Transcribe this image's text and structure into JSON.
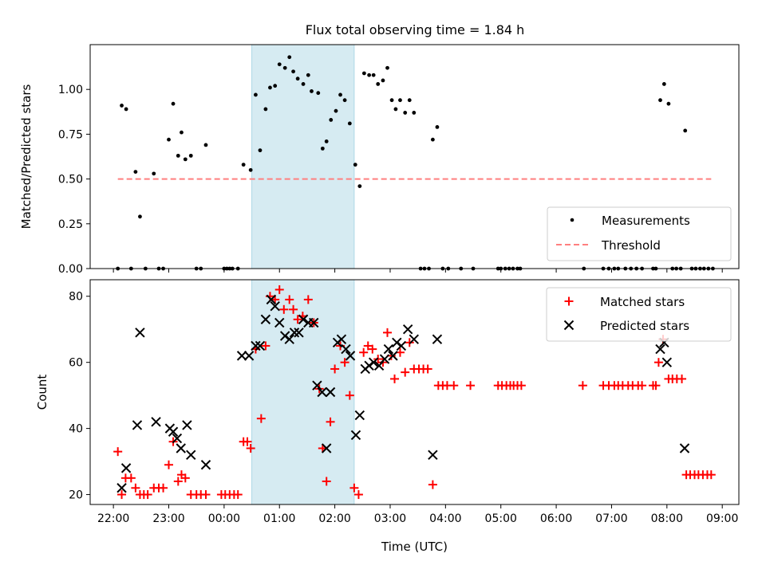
{
  "chart_data": {
    "title": "Flux total observing time = 1.84 h",
    "xlabel": "Time (UTC)",
    "x_units": "hours since 00:00 UTC (negative = previous day)",
    "xlim": [
      -2.42,
      9.3
    ],
    "x_ticks": [
      {
        "v": -2,
        "label": "22:00"
      },
      {
        "v": -1,
        "label": "23:00"
      },
      {
        "v": 0,
        "label": "00:00"
      },
      {
        "v": 1,
        "label": "01:00"
      },
      {
        "v": 2,
        "label": "02:00"
      },
      {
        "v": 3,
        "label": "03:00"
      },
      {
        "v": 4,
        "label": "04:00"
      },
      {
        "v": 5,
        "label": "05:00"
      },
      {
        "v": 6,
        "label": "06:00"
      },
      {
        "v": 7,
        "label": "07:00"
      },
      {
        "v": 8,
        "label": "08:00"
      },
      {
        "v": 9,
        "label": "09:00"
      }
    ],
    "observing_window": [
      0.5,
      2.35
    ],
    "window_color": "#add8e6",
    "top": {
      "type": "scatter",
      "ylabel": "Matched/Predicted stars",
      "ylim": [
        0,
        1.25
      ],
      "y_ticks": [
        {
          "v": 0,
          "label": "0.00"
        },
        {
          "v": 0.25,
          "label": "0.25"
        },
        {
          "v": 0.5,
          "label": "0.50"
        },
        {
          "v": 0.75,
          "label": "0.75"
        },
        {
          "v": 1.0,
          "label": "1.00"
        }
      ],
      "threshold": {
        "value": 0.5,
        "x": [
          -1.92,
          8.8
        ],
        "color": "#ff7f7f"
      },
      "legend": {
        "position": "bottom-right",
        "items": [
          "Measurements",
          "Threshold"
        ]
      },
      "measurements": [
        [
          -1.92,
          0
        ],
        [
          -1.85,
          0.91
        ],
        [
          -1.77,
          0.89
        ],
        [
          -1.68,
          0
        ],
        [
          -1.6,
          0.54
        ],
        [
          -1.52,
          0.29
        ],
        [
          -1.42,
          0
        ],
        [
          -1.27,
          0.53
        ],
        [
          -1.18,
          0
        ],
        [
          -1.1,
          0
        ],
        [
          -1.0,
          0.72
        ],
        [
          -0.92,
          0.92
        ],
        [
          -0.83,
          0.63
        ],
        [
          -0.77,
          0.76
        ],
        [
          -0.7,
          0.61
        ],
        [
          -0.6,
          0.63
        ],
        [
          -0.5,
          0
        ],
        [
          -0.42,
          0
        ],
        [
          -0.33,
          0.69
        ],
        [
          0,
          0
        ],
        [
          0.05,
          0
        ],
        [
          0.1,
          0
        ],
        [
          0.15,
          0
        ],
        [
          0.25,
          0
        ],
        [
          0.35,
          0.58
        ],
        [
          0.48,
          0.55
        ],
        [
          0.57,
          0.97
        ],
        [
          0.65,
          0.66
        ],
        [
          0.75,
          0.89
        ],
        [
          0.83,
          1.01
        ],
        [
          0.92,
          1.02
        ],
        [
          1.0,
          1.14
        ],
        [
          1.1,
          1.12
        ],
        [
          1.18,
          1.18
        ],
        [
          1.25,
          1.1
        ],
        [
          1.33,
          1.06
        ],
        [
          1.43,
          1.03
        ],
        [
          1.52,
          1.08
        ],
        [
          1.58,
          0.99
        ],
        [
          1.7,
          0.98
        ],
        [
          1.78,
          0.67
        ],
        [
          1.85,
          0.71
        ],
        [
          1.93,
          0.83
        ],
        [
          2.02,
          0.88
        ],
        [
          2.1,
          0.97
        ],
        [
          2.18,
          0.94
        ],
        [
          2.27,
          0.81
        ],
        [
          2.37,
          0.58
        ],
        [
          2.45,
          0.46
        ],
        [
          2.53,
          1.09
        ],
        [
          2.62,
          1.08
        ],
        [
          2.7,
          1.08
        ],
        [
          2.78,
          1.03
        ],
        [
          2.87,
          1.05
        ],
        [
          2.95,
          1.12
        ],
        [
          3.03,
          0.94
        ],
        [
          3.1,
          0.89
        ],
        [
          3.18,
          0.94
        ],
        [
          3.27,
          0.87
        ],
        [
          3.35,
          0.94
        ],
        [
          3.43,
          0.87
        ],
        [
          3.55,
          0
        ],
        [
          3.62,
          0
        ],
        [
          3.7,
          0
        ],
        [
          3.77,
          0.72
        ],
        [
          3.85,
          0.79
        ],
        [
          3.95,
          0
        ],
        [
          4.05,
          0
        ],
        [
          4.28,
          0
        ],
        [
          4.5,
          0
        ],
        [
          4.95,
          0
        ],
        [
          5.0,
          0
        ],
        [
          5.08,
          0
        ],
        [
          5.15,
          0
        ],
        [
          5.22,
          0
        ],
        [
          5.3,
          0
        ],
        [
          5.35,
          0
        ],
        [
          6.5,
          0
        ],
        [
          6.85,
          0
        ],
        [
          6.95,
          0
        ],
        [
          7.05,
          0
        ],
        [
          7.12,
          0
        ],
        [
          7.25,
          0
        ],
        [
          7.35,
          0
        ],
        [
          7.45,
          0
        ],
        [
          7.55,
          0
        ],
        [
          7.75,
          0
        ],
        [
          7.8,
          0
        ],
        [
          7.88,
          0.94
        ],
        [
          7.95,
          1.03
        ],
        [
          8.03,
          0.92
        ],
        [
          8.1,
          0
        ],
        [
          8.17,
          0
        ],
        [
          8.25,
          0
        ],
        [
          8.33,
          0.77
        ],
        [
          8.45,
          0
        ],
        [
          8.52,
          0
        ],
        [
          8.6,
          0
        ],
        [
          8.67,
          0
        ],
        [
          8.75,
          0
        ],
        [
          8.83,
          0
        ]
      ]
    },
    "bottom": {
      "type": "scatter",
      "ylabel": "Count",
      "ylim": [
        17,
        85
      ],
      "y_ticks": [
        {
          "v": 20,
          "label": "20"
        },
        {
          "v": 40,
          "label": "40"
        },
        {
          "v": 60,
          "label": "60"
        },
        {
          "v": 80,
          "label": "80"
        }
      ],
      "legend": {
        "position": "top-right",
        "items": [
          "Matched stars",
          "Predicted stars"
        ]
      },
      "series": [
        {
          "name": "Matched stars",
          "marker": "+",
          "color": "#ff0000",
          "points": [
            [
              -1.92,
              33
            ],
            [
              -1.85,
              20
            ],
            [
              -1.78,
              25
            ],
            [
              -1.68,
              25
            ],
            [
              -1.6,
              22
            ],
            [
              -1.52,
              20
            ],
            [
              -1.45,
              20
            ],
            [
              -1.38,
              20
            ],
            [
              -1.27,
              22
            ],
            [
              -1.18,
              22
            ],
            [
              -1.1,
              22
            ],
            [
              -1.0,
              29
            ],
            [
              -0.92,
              36
            ],
            [
              -0.83,
              24
            ],
            [
              -0.77,
              26
            ],
            [
              -0.7,
              25
            ],
            [
              -0.6,
              20
            ],
            [
              -0.5,
              20
            ],
            [
              -0.42,
              20
            ],
            [
              -0.33,
              20
            ],
            [
              -0.05,
              20
            ],
            [
              0.02,
              20
            ],
            [
              0.1,
              20
            ],
            [
              0.18,
              20
            ],
            [
              0.25,
              20
            ],
            [
              0.35,
              36
            ],
            [
              0.42,
              36
            ],
            [
              0.48,
              34
            ],
            [
              0.57,
              64
            ],
            [
              0.67,
              43
            ],
            [
              0.75,
              65
            ],
            [
              0.83,
              80
            ],
            [
              0.92,
              79
            ],
            [
              1.0,
              82
            ],
            [
              1.08,
              76
            ],
            [
              1.18,
              79
            ],
            [
              1.25,
              76
            ],
            [
              1.33,
              73
            ],
            [
              1.42,
              74
            ],
            [
              1.52,
              79
            ],
            [
              1.62,
              72
            ],
            [
              1.72,
              52
            ],
            [
              1.78,
              34
            ],
            [
              1.85,
              24
            ],
            [
              1.92,
              42
            ],
            [
              2.0,
              58
            ],
            [
              2.1,
              65
            ],
            [
              2.18,
              60
            ],
            [
              2.27,
              50
            ],
            [
              2.35,
              22
            ],
            [
              2.43,
              20
            ],
            [
              2.52,
              63
            ],
            [
              2.6,
              65
            ],
            [
              2.68,
              64
            ],
            [
              2.78,
              61
            ],
            [
              2.87,
              60
            ],
            [
              2.95,
              69
            ],
            [
              3.02,
              62
            ],
            [
              3.08,
              55
            ],
            [
              3.18,
              63
            ],
            [
              3.27,
              57
            ],
            [
              3.35,
              66
            ],
            [
              3.43,
              58
            ],
            [
              3.52,
              58
            ],
            [
              3.6,
              58
            ],
            [
              3.68,
              58
            ],
            [
              3.77,
              23
            ],
            [
              3.87,
              53
            ],
            [
              3.95,
              53
            ],
            [
              4.03,
              53
            ],
            [
              4.15,
              53
            ],
            [
              4.45,
              53
            ],
            [
              4.95,
              53
            ],
            [
              5.02,
              53
            ],
            [
              5.1,
              53
            ],
            [
              5.17,
              53
            ],
            [
              5.23,
              53
            ],
            [
              5.3,
              53
            ],
            [
              5.37,
              53
            ],
            [
              6.48,
              53
            ],
            [
              6.85,
              53
            ],
            [
              6.95,
              53
            ],
            [
              7.05,
              53
            ],
            [
              7.12,
              53
            ],
            [
              7.2,
              53
            ],
            [
              7.3,
              53
            ],
            [
              7.38,
              53
            ],
            [
              7.48,
              53
            ],
            [
              7.55,
              53
            ],
            [
              7.75,
              53
            ],
            [
              7.8,
              53
            ],
            [
              7.85,
              60
            ],
            [
              7.93,
              67
            ],
            [
              8.03,
              55
            ],
            [
              8.1,
              55
            ],
            [
              8.18,
              55
            ],
            [
              8.27,
              55
            ],
            [
              8.35,
              26
            ],
            [
              8.42,
              26
            ],
            [
              8.5,
              26
            ],
            [
              8.57,
              26
            ],
            [
              8.65,
              26
            ],
            [
              8.73,
              26
            ],
            [
              8.8,
              26
            ]
          ]
        },
        {
          "name": "Predicted stars",
          "marker": "x",
          "color": "#000000",
          "points": [
            [
              -1.85,
              22
            ],
            [
              -1.77,
              28
            ],
            [
              -1.57,
              41
            ],
            [
              -1.52,
              69
            ],
            [
              -1.23,
              42
            ],
            [
              -0.98,
              40
            ],
            [
              -0.92,
              39
            ],
            [
              -0.85,
              37
            ],
            [
              -0.78,
              34
            ],
            [
              -0.67,
              41
            ],
            [
              -0.6,
              32
            ],
            [
              -0.33,
              29
            ],
            [
              0.32,
              62
            ],
            [
              0.45,
              62
            ],
            [
              0.57,
              65
            ],
            [
              0.65,
              65
            ],
            [
              0.75,
              73
            ],
            [
              0.85,
              79
            ],
            [
              0.92,
              77
            ],
            [
              1.0,
              72
            ],
            [
              1.1,
              68
            ],
            [
              1.18,
              67
            ],
            [
              1.27,
              69
            ],
            [
              1.35,
              69
            ],
            [
              1.43,
              73
            ],
            [
              1.52,
              72
            ],
            [
              1.62,
              72
            ],
            [
              1.68,
              53
            ],
            [
              1.77,
              51
            ],
            [
              1.85,
              34
            ],
            [
              1.92,
              51
            ],
            [
              2.05,
              66
            ],
            [
              2.12,
              67
            ],
            [
              2.2,
              64
            ],
            [
              2.28,
              62
            ],
            [
              2.38,
              38
            ],
            [
              2.45,
              44
            ],
            [
              2.55,
              58
            ],
            [
              2.62,
              59
            ],
            [
              2.7,
              60
            ],
            [
              2.8,
              59
            ],
            [
              2.9,
              61
            ],
            [
              2.97,
              64
            ],
            [
              3.05,
              62
            ],
            [
              3.12,
              66
            ],
            [
              3.2,
              65
            ],
            [
              3.32,
              70
            ],
            [
              3.43,
              67
            ],
            [
              3.77,
              32
            ],
            [
              3.85,
              67
            ],
            [
              7.88,
              64
            ],
            [
              7.95,
              66
            ],
            [
              8.0,
              60
            ],
            [
              8.32,
              34
            ]
          ]
        }
      ]
    }
  }
}
